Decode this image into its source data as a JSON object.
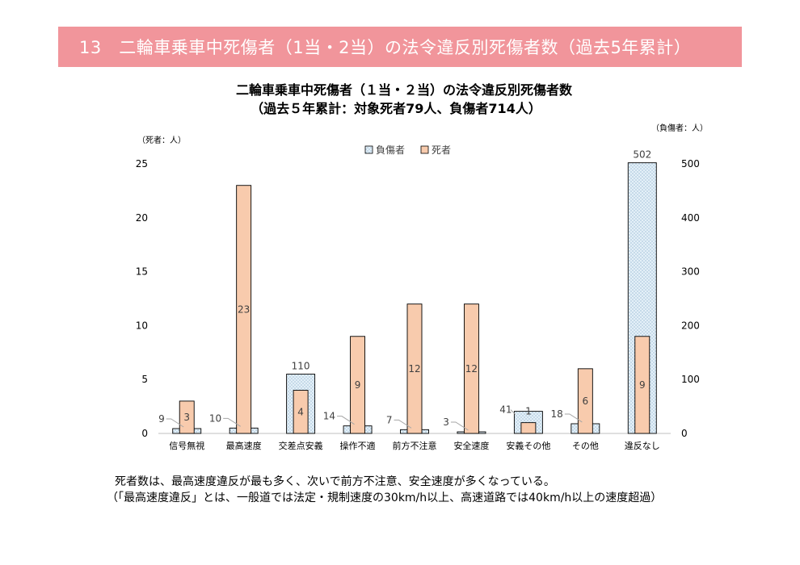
{
  "header": {
    "title": "13　二輪車乗車中死傷者（1当・2当）の法令違反別死傷者数（過去5年累計）"
  },
  "chart_data": {
    "type": "bar",
    "title": "二輪車乗車中死傷者（１当・２当）の法令違反別死傷者数",
    "subtitle": "（過去５年累計：対象死者79人、負傷者714人）",
    "y_left_unit": "（死者：人）",
    "y_right_unit": "（負傷者：人）",
    "categories": [
      "信号無視",
      "最高速度",
      "交差点安義",
      "操作不適",
      "前方不注意",
      "安全速度",
      "安義その他",
      "その他",
      "違反なし"
    ],
    "y_left_ticks": [
      "0",
      "5",
      "10",
      "15",
      "20",
      "25"
    ],
    "y_right_ticks": [
      "0",
      "100",
      "200",
      "300",
      "400",
      "500"
    ],
    "ylim_left": [
      0,
      25
    ],
    "ylim_right": [
      0,
      500
    ],
    "legend_position": "top",
    "series": [
      {
        "name": "負傷者",
        "axis": "right",
        "color": "#dceaf5",
        "border": "#000000",
        "values": [
          9,
          10,
          110,
          14,
          7,
          3,
          41,
          18,
          502
        ],
        "labels": [
          "9",
          "10",
          "110",
          "14",
          "7",
          "3",
          "41",
          "18",
          "502"
        ]
      },
      {
        "name": "死者",
        "axis": "left",
        "color": "#f8cbad",
        "border": "#000000",
        "values": [
          3,
          23,
          4,
          9,
          12,
          12,
          1,
          6,
          9
        ],
        "labels": [
          "3",
          "23",
          "4",
          "9",
          "12",
          "12",
          "1",
          "6",
          "9"
        ]
      }
    ]
  },
  "notes": {
    "line1": "死者数は、最高速度違反が最も多く、次いで前方不注意、安全速度が多くなっている。",
    "line2": "（「最高速度違反」とは、一般道では法定・規制速度の30km/h以上、高速道路では40km/h以上の速度超過）"
  }
}
